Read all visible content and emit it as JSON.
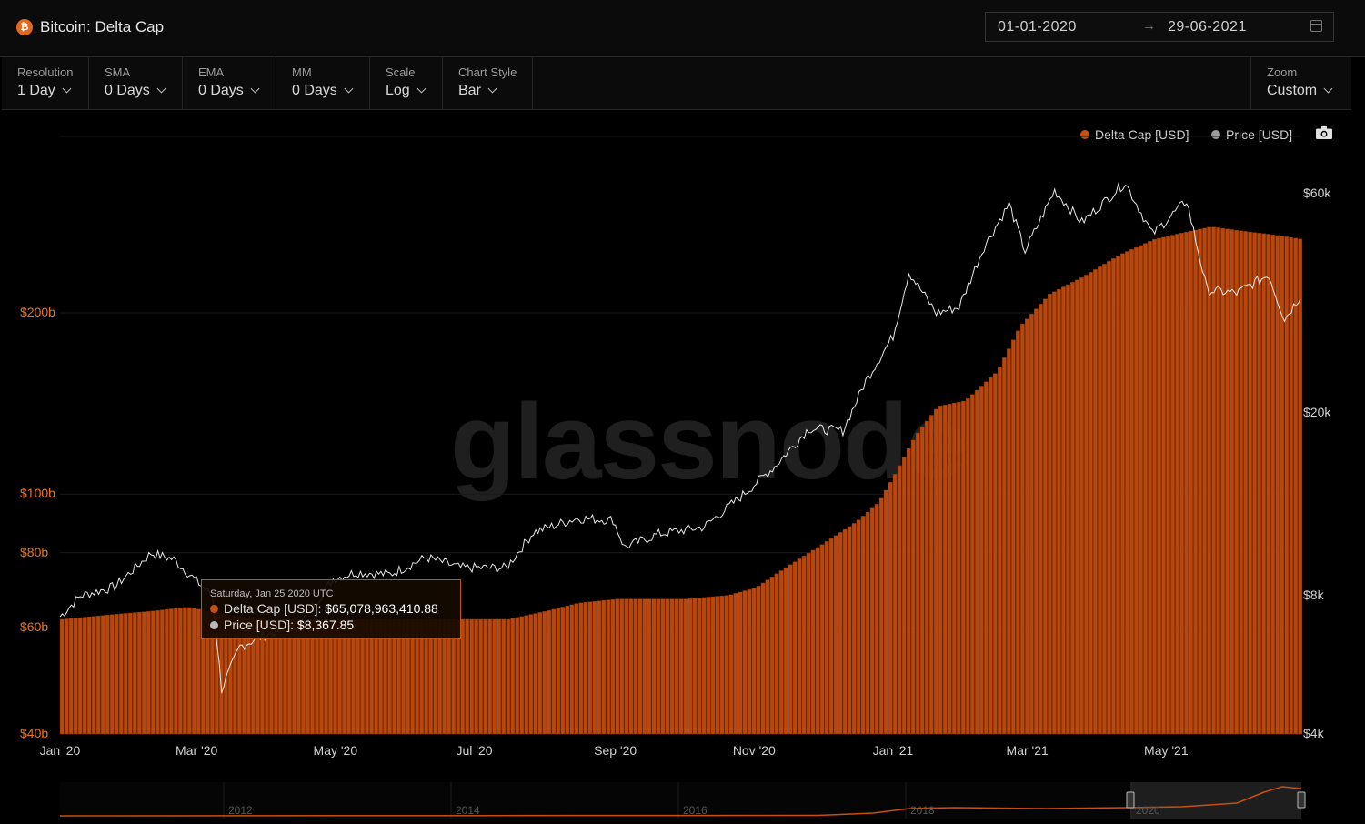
{
  "header": {
    "title": "Bitcoin: Delta Cap",
    "coin_glyph": "₿",
    "date_from": "01-01-2020",
    "date_arrow": "→",
    "date_to": "29-06-2021",
    "calendar_icon": "calendar-icon"
  },
  "controls": {
    "resolution": {
      "label": "Resolution",
      "value": "1 Day"
    },
    "sma": {
      "label": "SMA",
      "value": "0 Days"
    },
    "ema": {
      "label": "EMA",
      "value": "0 Days"
    },
    "mm": {
      "label": "MM",
      "value": "0 Days"
    },
    "scale": {
      "label": "Scale",
      "value": "Log"
    },
    "chart_style": {
      "label": "Chart Style",
      "value": "Bar"
    },
    "zoom": {
      "label": "Zoom",
      "value": "Custom"
    }
  },
  "legend": {
    "delta_cap": "Delta Cap [USD]",
    "price": "Price [USD]",
    "delta_color": "#c8500f",
    "price_color": "#9a9a9a"
  },
  "watermark": "glassnode",
  "tooltip": {
    "date": "Saturday, Jan 25 2020 UTC",
    "delta_label": "Delta Cap [USD]",
    "delta_value": "$65,078,963,410.88",
    "price_label": "Price [USD]",
    "price_value": "$8,367.85"
  },
  "navigator": {
    "years": [
      "2012",
      "2014",
      "2016",
      "2018",
      "2020"
    ]
  },
  "chart_data": {
    "type": "bar",
    "title": "Bitcoin: Delta Cap",
    "y_left": {
      "scale": "log",
      "ticks": [
        "$40b",
        "$60b",
        "$80b",
        "$100b",
        "$200b"
      ],
      "tick_values": [
        40,
        60,
        80,
        100,
        200
      ],
      "range": [
        40,
        330
      ]
    },
    "y_right": {
      "scale": "log",
      "ticks": [
        "$4k",
        "$8k",
        "$20k",
        "$60k"
      ],
      "tick_values": [
        4000,
        8000,
        20000,
        60000
      ],
      "range": [
        4000,
        80000
      ]
    },
    "x_ticks": [
      "Jan '20",
      "Mar '20",
      "May '20",
      "Jul '20",
      "Sep '20",
      "Nov '20",
      "Jan '21",
      "Mar '21",
      "May '21"
    ],
    "x_tick_dates": [
      "2020-01-01",
      "2020-03-01",
      "2020-05-01",
      "2020-07-01",
      "2020-09-01",
      "2020-11-01",
      "2021-01-01",
      "2021-03-01",
      "2021-05-01"
    ],
    "x_range": [
      "2020-01-01",
      "2021-06-29"
    ],
    "series": [
      {
        "name": "Delta Cap [USD]",
        "unit": "billion USD",
        "points": [
          [
            "2020-01-01",
            62
          ],
          [
            "2020-01-20",
            63
          ],
          [
            "2020-02-10",
            64
          ],
          [
            "2020-02-25",
            65
          ],
          [
            "2020-03-15",
            63
          ],
          [
            "2020-04-01",
            62
          ],
          [
            "2020-05-01",
            62
          ],
          [
            "2020-06-01",
            62
          ],
          [
            "2020-07-01",
            62
          ],
          [
            "2020-07-15",
            62
          ],
          [
            "2020-08-01",
            64
          ],
          [
            "2020-08-15",
            66
          ],
          [
            "2020-09-01",
            67
          ],
          [
            "2020-09-15",
            67
          ],
          [
            "2020-10-01",
            67
          ],
          [
            "2020-10-20",
            68
          ],
          [
            "2020-11-01",
            70
          ],
          [
            "2020-11-15",
            76
          ],
          [
            "2020-12-01",
            83
          ],
          [
            "2020-12-15",
            90
          ],
          [
            "2020-12-25",
            97
          ],
          [
            "2021-01-01",
            108
          ],
          [
            "2021-01-10",
            125
          ],
          [
            "2021-01-20",
            140
          ],
          [
            "2021-02-01",
            143
          ],
          [
            "2021-02-15",
            160
          ],
          [
            "2021-02-25",
            190
          ],
          [
            "2021-03-10",
            215
          ],
          [
            "2021-03-25",
            230
          ],
          [
            "2021-04-10",
            250
          ],
          [
            "2021-04-25",
            265
          ],
          [
            "2021-05-10",
            273
          ],
          [
            "2021-05-20",
            278
          ],
          [
            "2021-06-01",
            274
          ],
          [
            "2021-06-15",
            270
          ],
          [
            "2021-06-29",
            265
          ]
        ]
      },
      {
        "name": "Price [USD]",
        "unit": "USD",
        "points": [
          [
            "2020-01-01",
            7200
          ],
          [
            "2020-01-10",
            8000
          ],
          [
            "2020-01-25",
            8368
          ],
          [
            "2020-02-10",
            9900
          ],
          [
            "2020-02-20",
            9600
          ],
          [
            "2020-03-01",
            8600
          ],
          [
            "2020-03-08",
            8000
          ],
          [
            "2020-03-12",
            5000
          ],
          [
            "2020-03-20",
            6200
          ],
          [
            "2020-04-01",
            6600
          ],
          [
            "2020-04-15",
            6900
          ],
          [
            "2020-04-30",
            8700
          ],
          [
            "2020-05-10",
            9000
          ],
          [
            "2020-05-25",
            8900
          ],
          [
            "2020-06-10",
            9700
          ],
          [
            "2020-06-25",
            9200
          ],
          [
            "2020-07-15",
            9200
          ],
          [
            "2020-07-27",
            11000
          ],
          [
            "2020-08-15",
            11800
          ],
          [
            "2020-08-31",
            11700
          ],
          [
            "2020-09-05",
            10200
          ],
          [
            "2020-09-20",
            10900
          ],
          [
            "2020-10-10",
            11300
          ],
          [
            "2020-10-25",
            13000
          ],
          [
            "2020-11-10",
            15300
          ],
          [
            "2020-11-25",
            18500
          ],
          [
            "2020-12-10",
            18300
          ],
          [
            "2020-12-20",
            23500
          ],
          [
            "2021-01-01",
            29400
          ],
          [
            "2021-01-08",
            40500
          ],
          [
            "2021-01-20",
            33000
          ],
          [
            "2021-01-30",
            34000
          ],
          [
            "2021-02-10",
            46000
          ],
          [
            "2021-02-21",
            57000
          ],
          [
            "2021-02-28",
            45000
          ],
          [
            "2021-03-13",
            61000
          ],
          [
            "2021-03-25",
            52000
          ],
          [
            "2021-04-13",
            63500
          ],
          [
            "2021-04-25",
            49000
          ],
          [
            "2021-05-10",
            58000
          ],
          [
            "2021-05-19",
            37000
          ],
          [
            "2021-06-01",
            36500
          ],
          [
            "2021-06-15",
            40000
          ],
          [
            "2021-06-22",
            32000
          ],
          [
            "2021-06-29",
            36000
          ]
        ]
      }
    ],
    "legend_position": "top-right",
    "grid": true
  }
}
